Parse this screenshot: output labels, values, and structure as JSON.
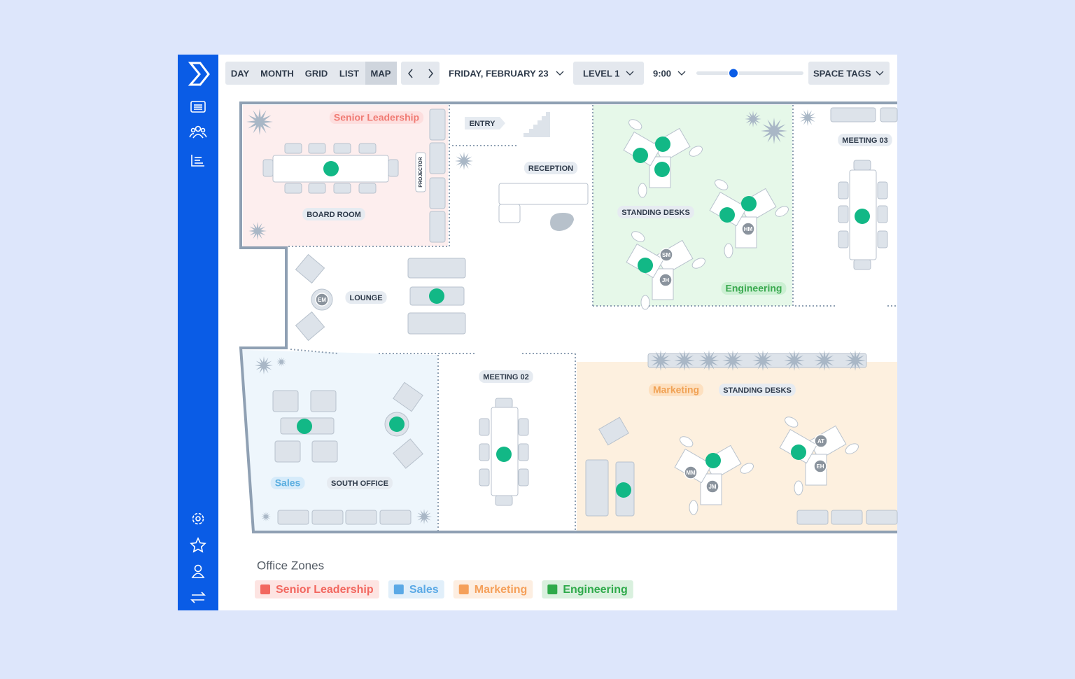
{
  "toolbar": {
    "views": [
      {
        "label": "DAY",
        "active": false
      },
      {
        "label": "MONTH",
        "active": false
      },
      {
        "label": "GRID",
        "active": false
      },
      {
        "label": "LIST",
        "active": false
      },
      {
        "label": "MAP",
        "active": true
      }
    ],
    "date": "FRIDAY, FEBRUARY 23",
    "level": "LEVEL 1",
    "time": "9:00",
    "space_tags": "SPACE TAGS"
  },
  "map": {
    "zones": [
      {
        "label": "Senior Leadership",
        "color": "#f07a73"
      },
      {
        "label": "Engineering",
        "color": "#3aa94f"
      },
      {
        "label": "Sales",
        "color": "#5aaee0"
      },
      {
        "label": "Marketing",
        "color": "#f0a255"
      }
    ],
    "rooms": [
      "BOARD ROOM",
      "ENTRY",
      "RECEPTION",
      "STANDING DESKS",
      "MEETING 03",
      "LOUNGE",
      "MEETING 02",
      "STANDING DESKS",
      "SOUTH OFFICE"
    ],
    "projector": "PROJECTOR",
    "occupants": [
      "SM",
      "JH",
      "HM",
      "EM",
      "MM",
      "JM",
      "AT",
      "EH"
    ]
  },
  "legend": {
    "title": "Office Zones",
    "items": [
      {
        "label": "Senior Leadership",
        "color": "#f2675f"
      },
      {
        "label": "Sales",
        "color": "#5aa9e6"
      },
      {
        "label": "Marketing",
        "color": "#f5a05a"
      },
      {
        "label": "Engineering",
        "color": "#2eaa4a"
      }
    ]
  }
}
